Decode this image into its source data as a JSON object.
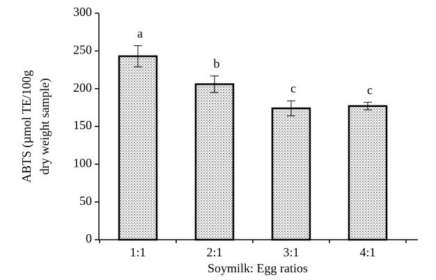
{
  "chart_data": {
    "type": "bar",
    "y_label": [
      "ABTS (µmol TE/100g",
      "dry weight sample)"
    ],
    "x_label": "Soymilk: Egg ratios",
    "categories": [
      "1:1",
      "2:1",
      "3:1",
      "4:1"
    ],
    "values": [
      243,
      206,
      174,
      177
    ],
    "errors": [
      14,
      11,
      10,
      5
    ],
    "bar_labels": [
      "a",
      "b",
      "c",
      "c"
    ],
    "color": "#9a9a9a",
    "ylim": [
      0,
      300
    ],
    "yticks": [
      0,
      50,
      100,
      150,
      200,
      250,
      300
    ],
    "grid": false
  }
}
